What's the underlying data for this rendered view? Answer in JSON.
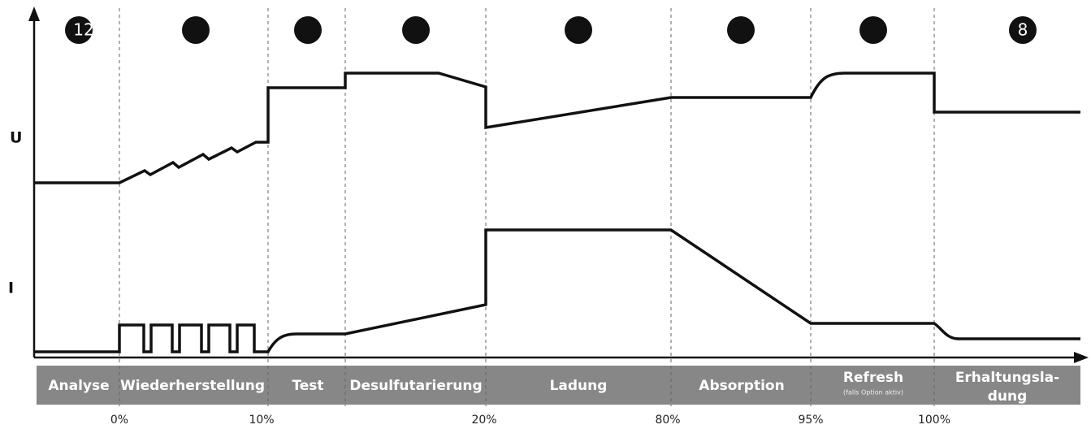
{
  "axis_labels": {
    "voltage": "U",
    "current": "I"
  },
  "step_numbers": {
    "first": "12",
    "last": "8"
  },
  "stages": [
    {
      "label": "Analyse"
    },
    {
      "label": "Wiederherstellung"
    },
    {
      "label": "Test"
    },
    {
      "label": "Desulfutarierung"
    },
    {
      "label": "Ladung"
    },
    {
      "label": "Absorption"
    },
    {
      "label": "Refresh",
      "note": "(falls Option aktiv)"
    },
    {
      "label": "Erhaltungsla-",
      "label_line2": "dung"
    }
  ],
  "percent_labels": [
    "0%",
    "10%",
    "20%",
    "80%",
    "95%",
    "100%"
  ]
}
